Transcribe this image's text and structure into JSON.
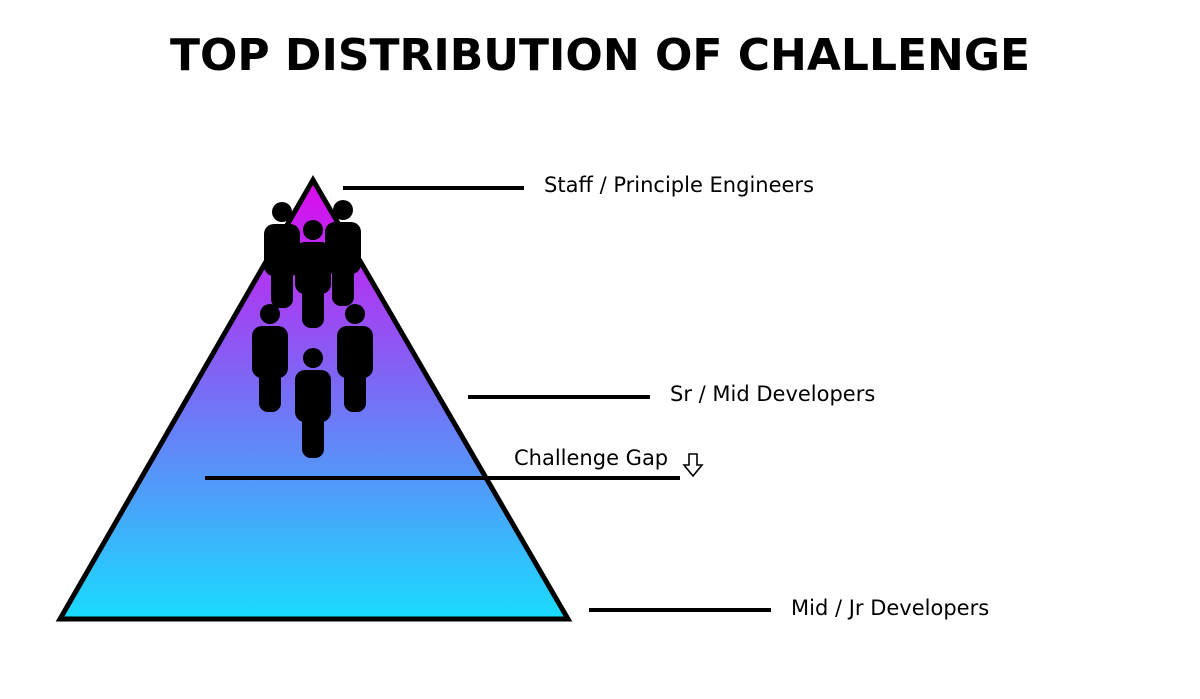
{
  "title": "TOP DISTRIBUTION OF CHALLENGE",
  "tiers": [
    {
      "label": "Staff / Principle Engineers"
    },
    {
      "label": "Sr / Mid Developers"
    },
    {
      "label": "Mid / Jr Developers"
    }
  ],
  "gap": {
    "label": "Challenge Gap",
    "icon": "down-arrow-icon"
  },
  "colors": {
    "apex": "#dd0aee",
    "middle": "#7e66f5",
    "base": "#19dcff",
    "stroke": "#000000",
    "people": "#000000"
  },
  "people_count": 6
}
